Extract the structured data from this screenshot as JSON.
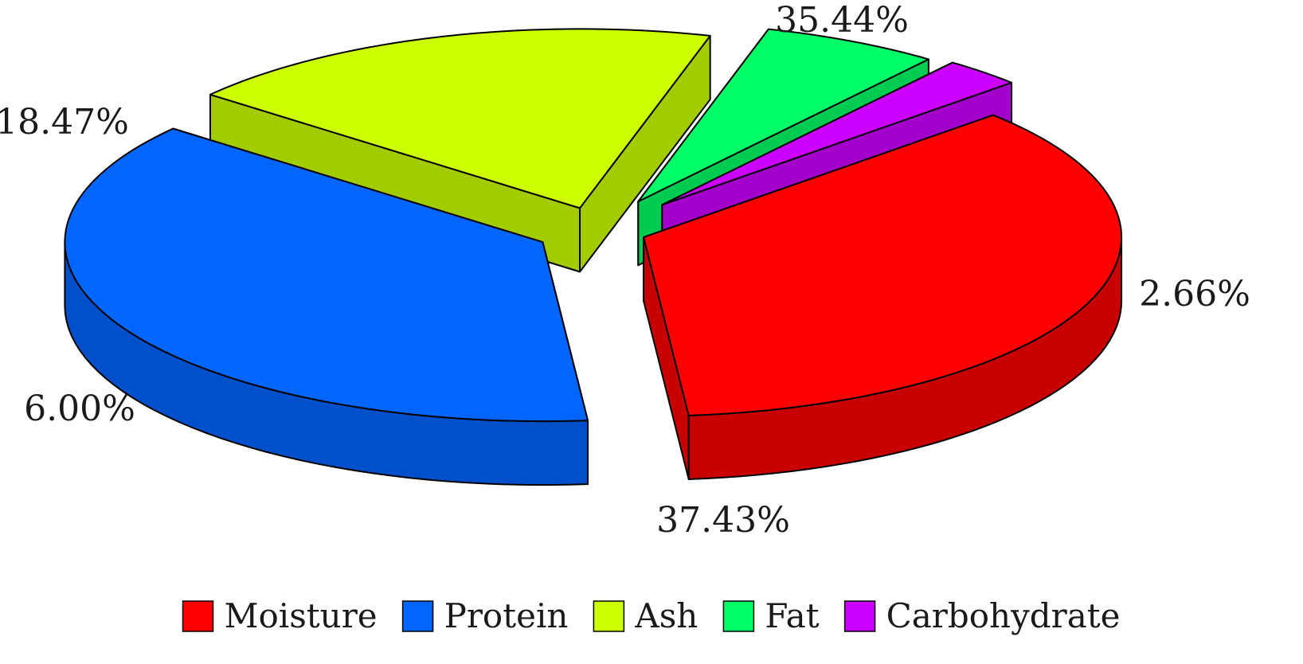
{
  "chart_data": {
    "type": "pie",
    "style": "3d-exploded",
    "legend_position": "bottom",
    "slices": [
      {
        "name": "Moisture",
        "value": 35.44,
        "label": "35.44%",
        "color": "#ff0000",
        "side_color": "#c80000"
      },
      {
        "name": "Protein",
        "value": 37.43,
        "label": "37.43%",
        "color": "#0066ff",
        "side_color": "#0050cc"
      },
      {
        "name": "Ash",
        "value": 18.47,
        "label": "18.47%",
        "color": "#ccff00",
        "side_color": "#a3cc00"
      },
      {
        "name": "Fat",
        "value": 6.0,
        "label": "6.00%",
        "color": "#00ff66",
        "side_color": "#00cc52"
      },
      {
        "name": "Carbohydrate",
        "value": 2.66,
        "label": "2.66%",
        "color": "#cc00ff",
        "side_color": "#a300cc"
      }
    ]
  }
}
